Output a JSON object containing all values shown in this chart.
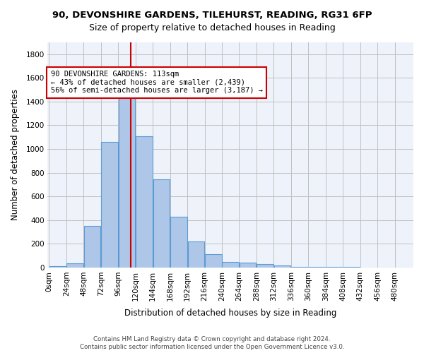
{
  "title1": "90, DEVONSHIRE GARDENS, TILEHURST, READING, RG31 6FP",
  "title2": "Size of property relative to detached houses in Reading",
  "xlabel": "Distribution of detached houses by size in Reading",
  "ylabel": "Number of detached properties",
  "bin_labels": [
    "0sqm",
    "24sqm",
    "48sqm",
    "72sqm",
    "96sqm",
    "120sqm",
    "144sqm",
    "168sqm",
    "192sqm",
    "216sqm",
    "240sqm",
    "264sqm",
    "288sqm",
    "312sqm",
    "336sqm",
    "360sqm",
    "384sqm",
    "408sqm",
    "432sqm",
    "456sqm",
    "480sqm"
  ],
  "bar_values": [
    10,
    35,
    350,
    1060,
    1470,
    1110,
    745,
    430,
    220,
    110,
    50,
    40,
    30,
    20,
    5,
    5,
    5,
    5,
    2,
    2,
    2
  ],
  "bar_color": "#aec6e8",
  "bar_edge_color": "#5b9bd5",
  "vline_x": 113,
  "vline_color": "#cc0000",
  "annotation_text": "90 DEVONSHIRE GARDENS: 113sqm\n← 43% of detached houses are smaller (2,439)\n56% of semi-detached houses are larger (3,187) →",
  "annotation_box_color": "#ffffff",
  "annotation_box_edge": "#cc0000",
  "ylim": [
    0,
    1900
  ],
  "yticks": [
    0,
    200,
    400,
    600,
    800,
    1000,
    1200,
    1400,
    1600,
    1800
  ],
  "bg_color": "#eef3fb",
  "footnote1": "Contains HM Land Registry data © Crown copyright and database right 2024.",
  "footnote2": "Contains public sector information licensed under the Open Government Licence v3.0."
}
